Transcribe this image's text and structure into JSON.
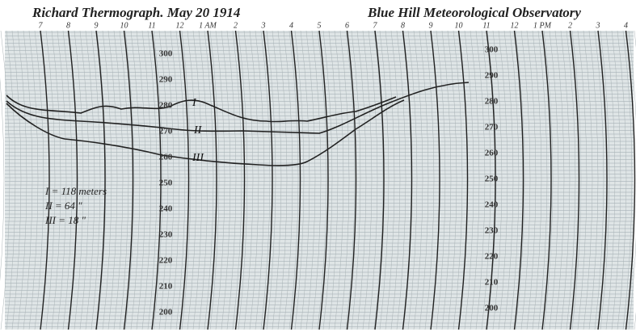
{
  "header": {
    "title": "Richard Thermograph. May 20 1914",
    "observatory": "Blue Hill Meteorological Observatory"
  },
  "hours": [
    "7",
    "8",
    "9",
    "10",
    "11",
    "12",
    "1 AM",
    "2",
    "3",
    "4",
    "5",
    "6",
    "7",
    "8",
    "9",
    "10",
    "11",
    "12",
    "1 PM",
    "2",
    "3",
    "4"
  ],
  "scale_left": [
    "300",
    "290",
    "280",
    "270",
    "260",
    "250",
    "240",
    "230",
    "220",
    "210",
    "200"
  ],
  "scale_right": [
    "300",
    "290",
    "280",
    "270",
    "260",
    "250",
    "240",
    "230",
    "220",
    "210",
    "200"
  ],
  "traces": [
    "I",
    "II",
    "III"
  ],
  "notes": [
    "I = 118 meters",
    "II = 64 \"",
    "III = 18 \""
  ]
}
